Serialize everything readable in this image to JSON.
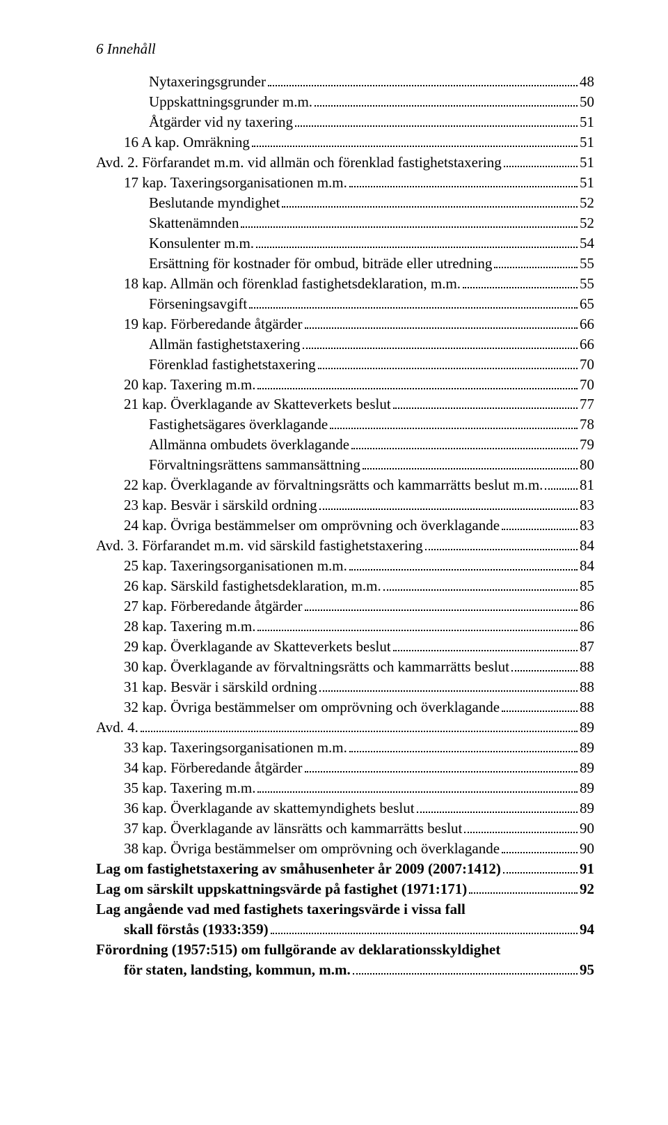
{
  "header": "6  Innehåll",
  "entries": [
    {
      "indent": 2,
      "label": "Nytaxeringsgrunder",
      "page": "48"
    },
    {
      "indent": 2,
      "label": "Uppskattningsgrunder m.m.",
      "page": "50"
    },
    {
      "indent": 2,
      "label": "Åtgärder vid ny taxering",
      "page": "51"
    },
    {
      "indent": 1,
      "label": "16 A kap. Omräkning",
      "page": "51"
    },
    {
      "indent": 0,
      "label": "Avd. 2. Förfarandet m.m. vid allmän och förenklad fastighetstaxering",
      "page": "51"
    },
    {
      "indent": 1,
      "label": "17 kap. Taxeringsorganisationen m.m.",
      "page": "51"
    },
    {
      "indent": 2,
      "label": "Beslutande myndighet",
      "page": "52"
    },
    {
      "indent": 2,
      "label": "Skattenämnden",
      "page": "52"
    },
    {
      "indent": 2,
      "label": "Konsulenter m.m.",
      "page": "54"
    },
    {
      "indent": 2,
      "label": "Ersättning för kostnader för ombud, biträde eller utredning",
      "page": "55"
    },
    {
      "indent": 1,
      "label": "18 kap. Allmän och förenklad fastighetsdeklaration, m.m.",
      "page": "55"
    },
    {
      "indent": 2,
      "label": "Förseningsavgift",
      "page": "65"
    },
    {
      "indent": 1,
      "label": "19 kap. Förberedande åtgärder",
      "page": "66"
    },
    {
      "indent": 2,
      "label": "Allmän fastighetstaxering",
      "page": "66"
    },
    {
      "indent": 2,
      "label": "Förenklad fastighetstaxering",
      "page": "70"
    },
    {
      "indent": 1,
      "label": "20 kap. Taxering m.m.",
      "page": "70"
    },
    {
      "indent": 1,
      "label": "21 kap. Överklagande av Skatteverkets beslut",
      "page": "77"
    },
    {
      "indent": 2,
      "label": "Fastighetsägares överklagande",
      "page": "78"
    },
    {
      "indent": 2,
      "label": "Allmänna ombudets överklagande",
      "page": "79"
    },
    {
      "indent": 2,
      "label": "Förvaltningsrättens sammansättning",
      "page": "80"
    },
    {
      "indent": 1,
      "label": "22 kap. Överklagande av förvaltningsrätts och kammarrätts beslut m.m.",
      "page": "81"
    },
    {
      "indent": 1,
      "label": "23 kap. Besvär i särskild ordning",
      "page": "83"
    },
    {
      "indent": 1,
      "label": "24 kap. Övriga bestämmelser om omprövning och överklagande",
      "page": "83"
    },
    {
      "indent": 0,
      "label": "Avd. 3. Förfarandet m.m. vid särskild fastighetstaxering",
      "page": "84"
    },
    {
      "indent": 1,
      "label": "25 kap. Taxeringsorganisationen m.m.",
      "page": "84"
    },
    {
      "indent": 1,
      "label": "26 kap. Särskild fastighetsdeklaration, m.m.",
      "page": "85"
    },
    {
      "indent": 1,
      "label": "27 kap. Förberedande åtgärder",
      "page": "86"
    },
    {
      "indent": 1,
      "label": "28 kap. Taxering m.m.",
      "page": "86"
    },
    {
      "indent": 1,
      "label": "29 kap. Överklagande av Skatteverkets beslut",
      "page": "87"
    },
    {
      "indent": 1,
      "label": "30 kap. Överklagande av förvaltningsrätts och kammarrätts beslut",
      "page": "88"
    },
    {
      "indent": 1,
      "label": "31 kap. Besvär i särskild ordning",
      "page": "88"
    },
    {
      "indent": 1,
      "label": "32 kap. Övriga bestämmelser om omprövning och överklagande",
      "page": "88"
    },
    {
      "indent": 0,
      "label": "Avd. 4.",
      "page": "89"
    },
    {
      "indent": 1,
      "label": "33 kap. Taxeringsorganisationen m.m.",
      "page": "89"
    },
    {
      "indent": 1,
      "label": "34 kap. Förberedande åtgärder",
      "page": "89"
    },
    {
      "indent": 1,
      "label": "35 kap. Taxering m.m.",
      "page": "89"
    },
    {
      "indent": 1,
      "label": "36 kap. Överklagande av skattemyndighets beslut",
      "page": "89"
    },
    {
      "indent": 1,
      "label": "37 kap. Överklagande av länsrätts och kammarrätts beslut",
      "page": "90"
    },
    {
      "indent": 1,
      "label": "38 kap. Övriga bestämmelser om omprövning och överklagande",
      "page": "90"
    },
    {
      "indent": 0,
      "bold": true,
      "label": "Lag om fastighetstaxering av småhusenheter år 2009 (2007:1412)",
      "page": "91"
    },
    {
      "indent": 0,
      "bold": true,
      "label": "Lag om särskilt uppskattningsvärde på fastighet (1971:171)",
      "page": "92"
    },
    {
      "indent": 0,
      "bold": true,
      "wrap": true,
      "line1": "Lag angående vad med fastighets taxeringsvärde i vissa fall",
      "line2": "skall förstås (1933:359)",
      "page": "94"
    },
    {
      "indent": 0,
      "bold": true,
      "wrap": true,
      "line1": "Förordning (1957:515) om fullgörande av deklarationsskyldighet",
      "line2": "för staten, landsting, kommun, m.m.",
      "page": "95"
    }
  ]
}
